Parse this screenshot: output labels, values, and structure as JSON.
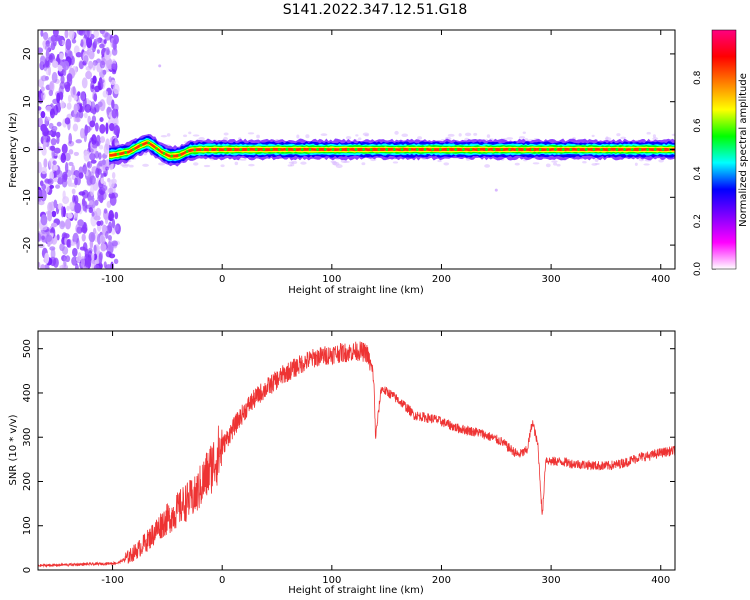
{
  "title": "S141.2022.347.12.51.G18",
  "chart_data": [
    {
      "type": "heatmap",
      "xlabel": "Height of straight line (km)",
      "ylabel": "Frequency (Hz)",
      "xlim": [
        -168,
        413
      ],
      "ylim": [
        -25,
        25
      ],
      "x_ticks": [
        -100,
        0,
        100,
        200,
        300,
        400
      ],
      "y_ticks": [
        -20,
        -10,
        0,
        10,
        20
      ],
      "colorbar": {
        "label": "Normalized spectral amplitude",
        "range": [
          0,
          1
        ],
        "ticks": [
          "0.0",
          "0.2",
          "0.4",
          "0.6",
          "0.8"
        ],
        "colors": [
          "#ffffff",
          "#ff00ff",
          "#8000ff",
          "#0000ff",
          "#00ffff",
          "#00ff00",
          "#ffff00",
          "#ff8000",
          "#ff0000",
          "#ff0080"
        ]
      },
      "peak_ridge": {
        "x": [
          -100,
          -85,
          -75,
          -68,
          -62,
          -55,
          -48,
          -40,
          -30,
          -20,
          0,
          100,
          200,
          300,
          413
        ],
        "y": [
          -1.2,
          -0.5,
          0.8,
          1.5,
          0.6,
          -0.6,
          -1.4,
          -1.3,
          -0.2,
          0,
          0,
          0,
          0,
          0,
          0
        ]
      },
      "noise_region_x": [
        -168,
        -100
      ]
    },
    {
      "type": "line",
      "xlabel": "Height of straight line (km)",
      "ylabel": "SNR (10 * v/v)",
      "xlim": [
        -168,
        413
      ],
      "ylim": [
        0,
        540
      ],
      "x_ticks": [
        -100,
        0,
        100,
        200,
        300,
        400
      ],
      "y_ticks": [
        0,
        100,
        200,
        300,
        400,
        500
      ],
      "color": "#ee3333",
      "x": [
        -168,
        -140,
        -110,
        -95,
        -85,
        -75,
        -65,
        -55,
        -45,
        -35,
        -25,
        -15,
        -5,
        5,
        15,
        25,
        35,
        45,
        55,
        65,
        75,
        85,
        95,
        105,
        115,
        125,
        132,
        138,
        140,
        145,
        155,
        165,
        175,
        185,
        195,
        205,
        215,
        225,
        235,
        245,
        255,
        262,
        270,
        278,
        283,
        288,
        292,
        295,
        300,
        310,
        320,
        330,
        340,
        350,
        360,
        370,
        380,
        390,
        400,
        413
      ],
      "y": [
        10,
        12,
        14,
        16,
        30,
        50,
        75,
        105,
        125,
        150,
        165,
        210,
        255,
        300,
        340,
        375,
        400,
        420,
        440,
        455,
        470,
        480,
        485,
        490,
        492,
        495,
        490,
        440,
        300,
        410,
        395,
        375,
        350,
        345,
        340,
        330,
        320,
        315,
        310,
        300,
        290,
        275,
        260,
        270,
        335,
        280,
        120,
        250,
        245,
        245,
        240,
        238,
        236,
        235,
        238,
        245,
        255,
        258,
        265,
        270
      ]
    }
  ]
}
